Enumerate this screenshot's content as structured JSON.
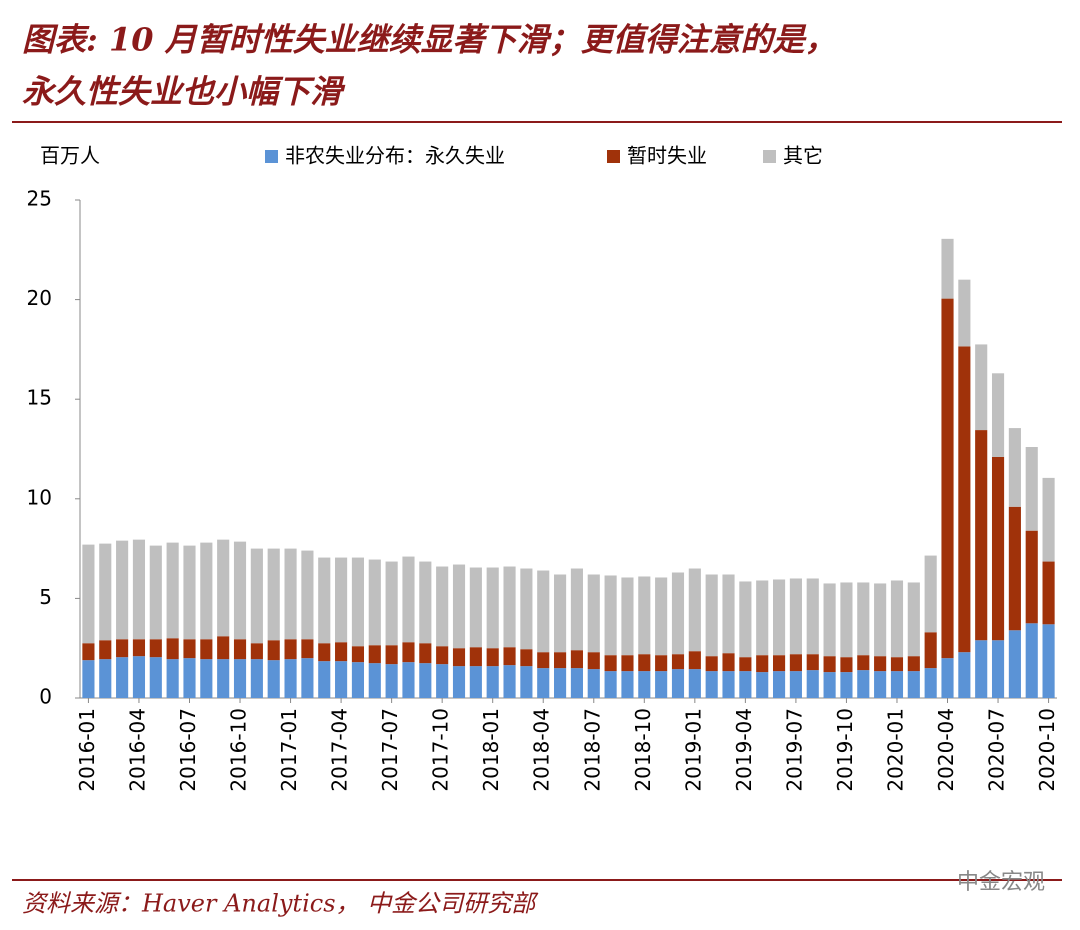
{
  "chart_data": {
    "type": "stacked_bar",
    "title_lines": [
      "图表: 10 月暂时性失业继续显著下滑；更值得注意的是，",
      "永久性失业也小幅下滑"
    ],
    "unit_label": "百万人",
    "source": "资料来源：Haver Analytics， 中金公司研究部",
    "watermark": "中金宏观",
    "categories": [
      "2016-01",
      null,
      null,
      "2016-04",
      null,
      null,
      "2016-07",
      null,
      null,
      "2016-10",
      null,
      null,
      "2017-01",
      null,
      null,
      "2017-04",
      null,
      null,
      "2017-07",
      null,
      null,
      "2017-10",
      null,
      null,
      "2018-01",
      null,
      null,
      "2018-04",
      null,
      null,
      "2018-07",
      null,
      null,
      "2018-10",
      null,
      null,
      "2019-01",
      null,
      null,
      "2019-04",
      null,
      null,
      "2019-07",
      null,
      null,
      "2019-10",
      null,
      null,
      "2020-01",
      null,
      null,
      "2020-04",
      null,
      null,
      "2020-07",
      null,
      null,
      "2020-10"
    ],
    "series": [
      {
        "name": "非农失业分布：永久失业",
        "color": "#5b93d6",
        "values": [
          1.9,
          1.95,
          2.05,
          2.1,
          2.05,
          1.95,
          2.0,
          1.95,
          1.95,
          1.95,
          1.95,
          1.9,
          1.95,
          2.0,
          1.85,
          1.85,
          1.8,
          1.75,
          1.7,
          1.8,
          1.75,
          1.7,
          1.6,
          1.6,
          1.6,
          1.65,
          1.6,
          1.5,
          1.5,
          1.5,
          1.45,
          1.35,
          1.35,
          1.35,
          1.35,
          1.45,
          1.45,
          1.35,
          1.35,
          1.35,
          1.3,
          1.35,
          1.35,
          1.4,
          1.3,
          1.3,
          1.4,
          1.35,
          1.35,
          1.35,
          1.5,
          2.0,
          2.3,
          2.9,
          2.9,
          3.4,
          3.75,
          3.7
        ]
      },
      {
        "name": "暂时失业",
        "color": "#a0320a",
        "values": [
          0.85,
          0.95,
          0.9,
          0.85,
          0.9,
          1.05,
          0.95,
          1.0,
          1.15,
          1.0,
          0.8,
          1.0,
          1.0,
          0.95,
          0.9,
          0.95,
          0.8,
          0.9,
          0.95,
          1.0,
          1.0,
          0.9,
          0.9,
          0.95,
          0.9,
          0.9,
          0.85,
          0.8,
          0.8,
          0.9,
          0.85,
          0.8,
          0.8,
          0.85,
          0.8,
          0.75,
          0.9,
          0.75,
          0.9,
          0.7,
          0.85,
          0.8,
          0.85,
          0.8,
          0.8,
          0.75,
          0.75,
          0.75,
          0.7,
          0.75,
          1.8,
          18.05,
          15.35,
          10.55,
          9.2,
          6.2,
          4.65,
          3.15
        ]
      },
      {
        "name": "其它",
        "color": "#bfbfbf",
        "values": [
          4.95,
          4.85,
          4.95,
          5.0,
          4.7,
          4.8,
          4.7,
          4.85,
          4.85,
          4.9,
          4.75,
          4.6,
          4.55,
          4.45,
          4.3,
          4.25,
          4.45,
          4.3,
          4.2,
          4.3,
          4.1,
          4.0,
          4.2,
          4.0,
          4.05,
          4.05,
          4.05,
          4.1,
          3.9,
          4.1,
          3.9,
          4.0,
          3.9,
          3.9,
          3.9,
          4.1,
          4.15,
          4.1,
          3.95,
          3.8,
          3.75,
          3.8,
          3.8,
          3.8,
          3.65,
          3.75,
          3.65,
          3.65,
          3.85,
          3.7,
          3.85,
          3.0,
          3.35,
          4.3,
          4.2,
          3.95,
          4.2,
          4.2
        ]
      }
    ],
    "ylim": [
      0,
      25
    ],
    "yticks": [
      0,
      5,
      10,
      15,
      20,
      25
    ],
    "grid": false
  }
}
